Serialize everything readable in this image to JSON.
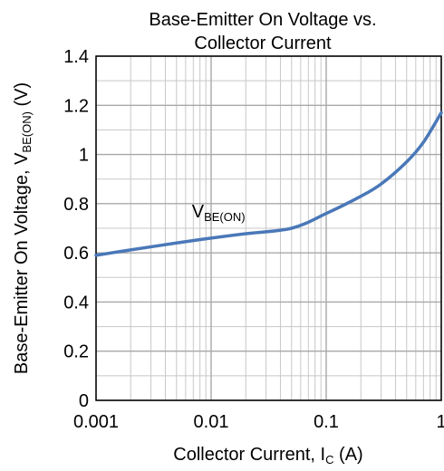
{
  "chart_data": {
    "type": "line",
    "title_line1": "Base-Emitter On Voltage vs.",
    "title_line2": "Collector Current",
    "xlabel_main": "Collector Current, I",
    "xlabel_sub": "C",
    "xlabel_unit": " (A)",
    "ylabel_main": "Base-Emitter On Voltage, V",
    "ylabel_sub": "BE(ON)",
    "ylabel_unit": " (V)",
    "x_scale": "log",
    "xlim": [
      0.001,
      1
    ],
    "ylim": [
      0,
      1.4
    ],
    "x_ticks": [
      0.001,
      0.01,
      0.1,
      1
    ],
    "x_tick_labels": [
      "0.001",
      "0.01",
      "0.1",
      "1"
    ],
    "y_ticks": [
      0,
      0.2,
      0.4,
      0.6,
      0.8,
      1.0,
      1.2,
      1.4
    ],
    "y_tick_labels": [
      "0",
      "0.2",
      "0.4",
      "0.6",
      "0.8",
      "1",
      "1.2",
      "1.4"
    ],
    "grid": true,
    "series": [
      {
        "name": "VBE(ON)",
        "color": "#4a78b8",
        "x": [
          0.001,
          0.002,
          0.005,
          0.01,
          0.02,
          0.05,
          0.1,
          0.2,
          0.3,
          0.5,
          0.7,
          1.0
        ],
        "y": [
          0.59,
          0.612,
          0.64,
          0.66,
          0.678,
          0.7,
          0.76,
          0.83,
          0.88,
          0.97,
          1.05,
          1.17
        ]
      }
    ],
    "annotation_main": "V",
    "annotation_sub": "BE(ON)",
    "annotation_x": 0.0068,
    "annotation_y": 0.745
  }
}
